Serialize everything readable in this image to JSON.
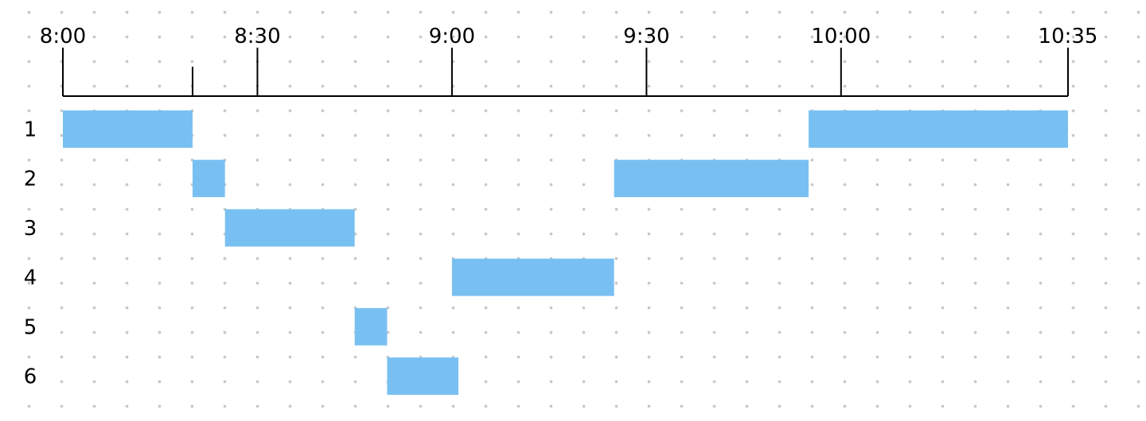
{
  "chart_data": {
    "type": "gantt",
    "time_unit": "minutes",
    "x_range": [
      "8:00",
      "10:35"
    ],
    "ticks": [
      {
        "time": "8:00",
        "label": "8:00"
      },
      {
        "time": "8:20",
        "label": ""
      },
      {
        "time": "8:30",
        "label": "8:30"
      },
      {
        "time": "9:00",
        "label": "9:00"
      },
      {
        "time": "9:30",
        "label": "9:30"
      },
      {
        "time": "10:00",
        "label": "10:00"
      },
      {
        "time": "10:35",
        "label": "10:35"
      }
    ],
    "rows": [
      {
        "label": "1",
        "intervals": [
          [
            "8:00",
            "8:20"
          ],
          [
            "9:55",
            "10:35"
          ]
        ]
      },
      {
        "label": "2",
        "intervals": [
          [
            "8:20",
            "8:25"
          ],
          [
            "9:25",
            "9:55"
          ]
        ]
      },
      {
        "label": "3",
        "intervals": [
          [
            "8:25",
            "8:45"
          ]
        ]
      },
      {
        "label": "4",
        "intervals": [
          [
            "9:00",
            "9:25"
          ]
        ]
      },
      {
        "label": "5",
        "intervals": [
          [
            "8:45",
            "8:50"
          ]
        ]
      },
      {
        "label": "6",
        "intervals": [
          [
            "8:50",
            "9:01"
          ]
        ]
      }
    ],
    "bar_color": "#79C0F2",
    "grid": "dotted"
  }
}
